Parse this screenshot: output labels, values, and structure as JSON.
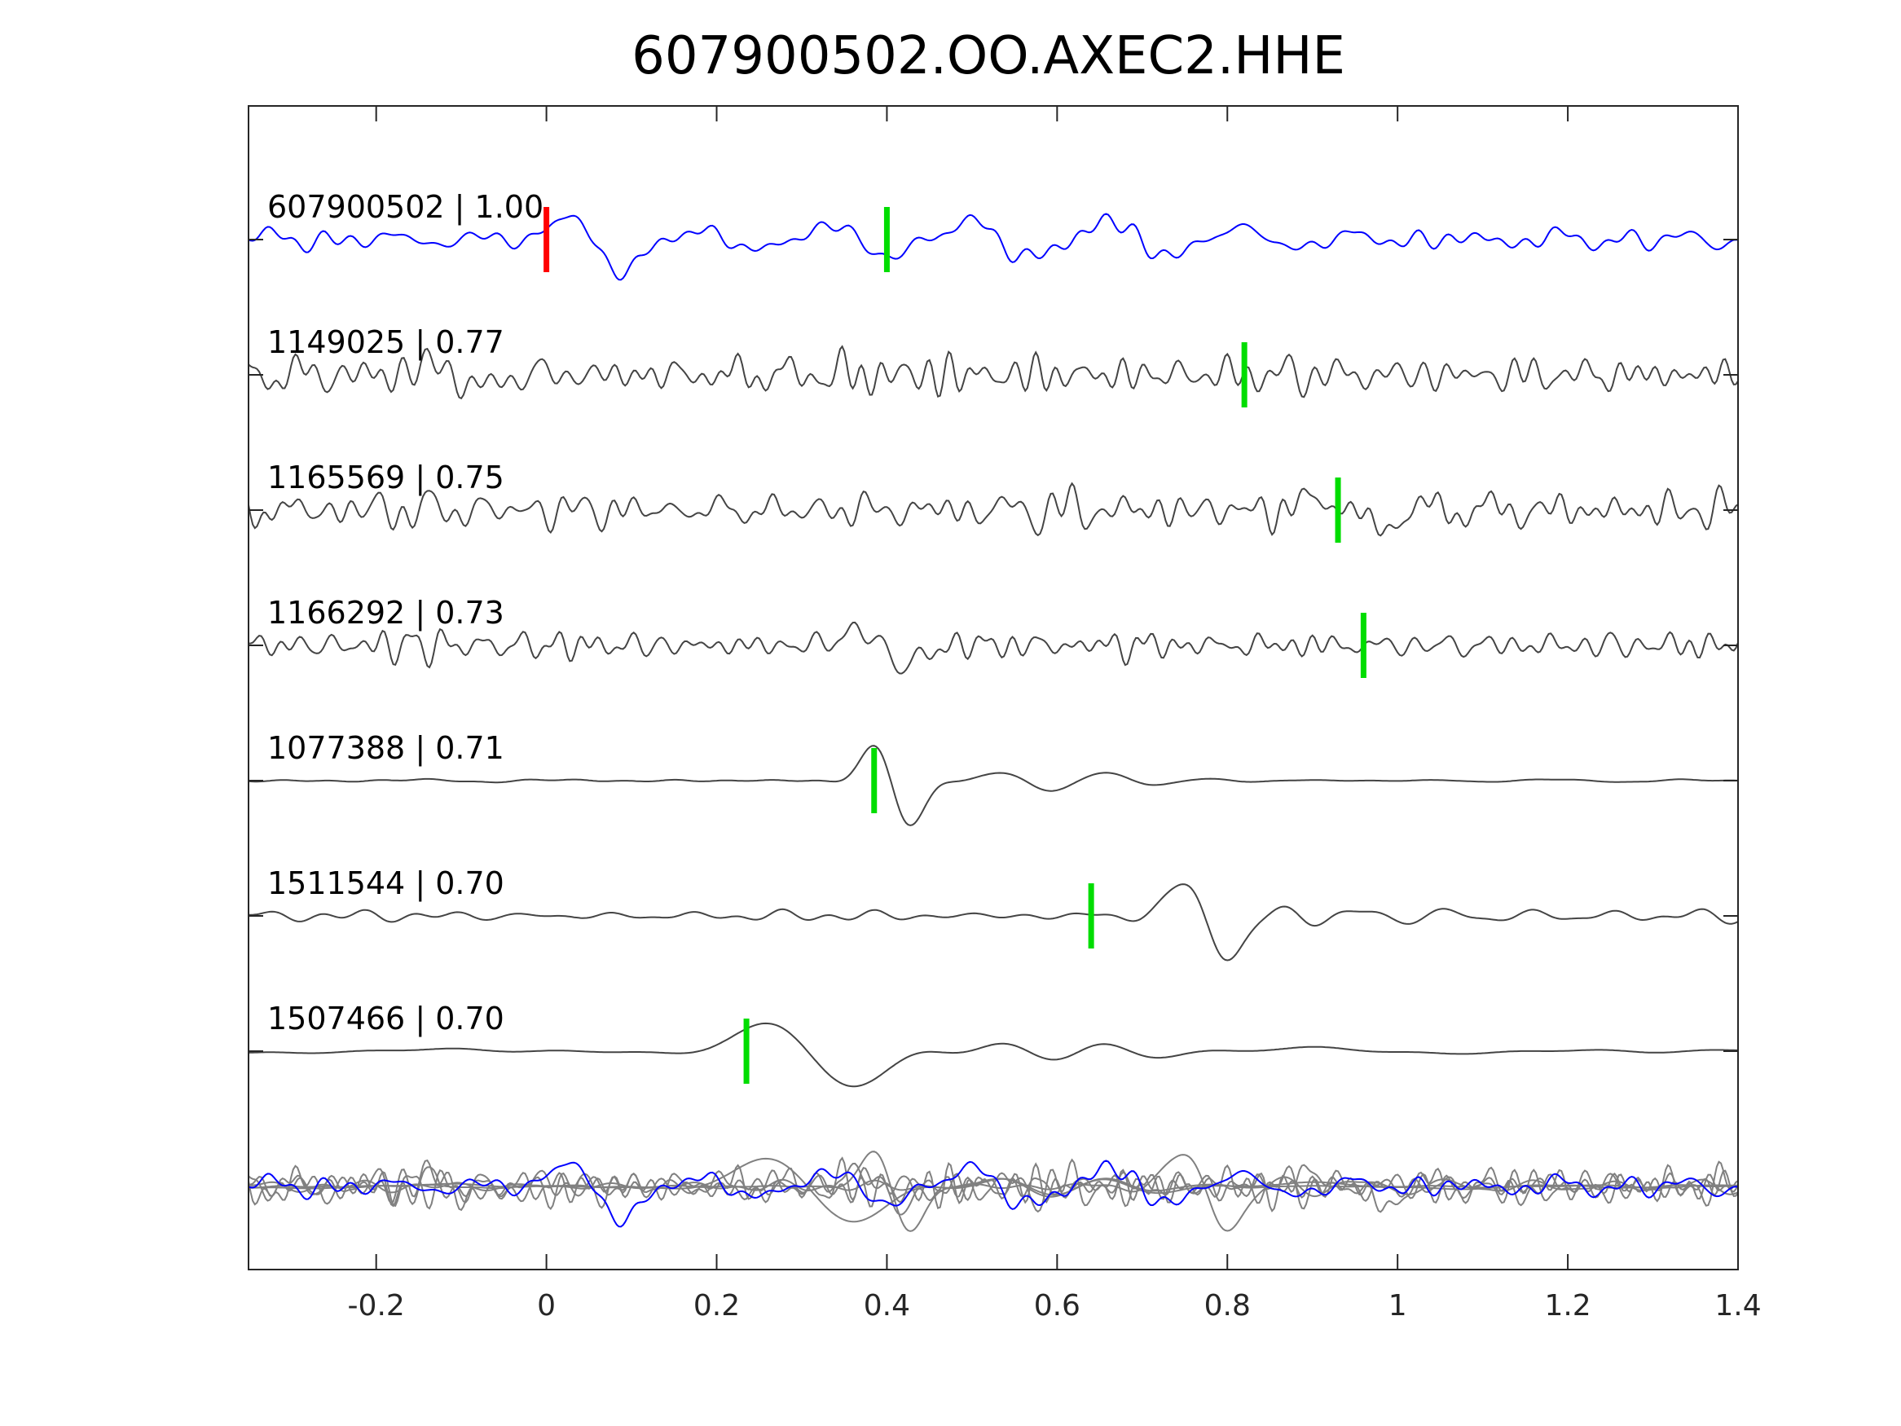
{
  "chart_data": {
    "type": "line",
    "title": "607900502.OO.AXEC2.HHE",
    "xlabel": "",
    "ylabel": "",
    "xlim": [
      -0.35,
      1.4
    ],
    "xticks": [
      -0.2,
      0,
      0.2,
      0.4,
      0.6,
      0.8,
      1,
      1.2,
      1.4
    ],
    "xtick_labels": [
      "-0.2",
      "0",
      "0.2",
      "0.4",
      "0.6",
      "0.8",
      "1",
      "1.2",
      "1.4"
    ],
    "grid": false,
    "colors": {
      "master": "#0000ff",
      "trace": "#444444",
      "overlay": "#808080",
      "origin_pick": "#ff0000",
      "pick": "#00dd00",
      "axis": "#262626"
    },
    "origin_pick_time": 0,
    "traces": [
      {
        "label": "607900502 | 1.00",
        "pick": 0.4,
        "kind": "master",
        "seed": 11,
        "freq": 18,
        "event": 0.06,
        "eventAmp": 1.6
      },
      {
        "label": "1149025 | 0.77",
        "pick": 0.82,
        "kind": "noisy",
        "seed": 23,
        "freq": 30,
        "event": -0.1,
        "eventAmp": 0.6
      },
      {
        "label": "1165569 | 0.75",
        "pick": 0.93,
        "kind": "noisy",
        "seed": 37,
        "freq": 28,
        "event": 0.95,
        "eventAmp": 0.8
      },
      {
        "label": "1166292 | 0.73",
        "pick": 0.96,
        "kind": "noisy",
        "seed": 41,
        "freq": 34,
        "event": 0.4,
        "eventAmp": 0.9
      },
      {
        "label": "1077388 | 0.71",
        "pick": 0.385,
        "kind": "smooth",
        "seed": 53,
        "freq": 10,
        "event": 0.41,
        "eventAmp": 2.2
      },
      {
        "label": "1511544 | 0.70",
        "pick": 0.64,
        "kind": "medium",
        "seed": 67,
        "freq": 12,
        "event": 0.78,
        "eventAmp": 1.8
      },
      {
        "label": "1507466 | 0.70",
        "pick": 0.235,
        "kind": "verysmooth",
        "seed": 79,
        "freq": 5,
        "event": 0.32,
        "eventAmp": 1.8
      }
    ]
  }
}
